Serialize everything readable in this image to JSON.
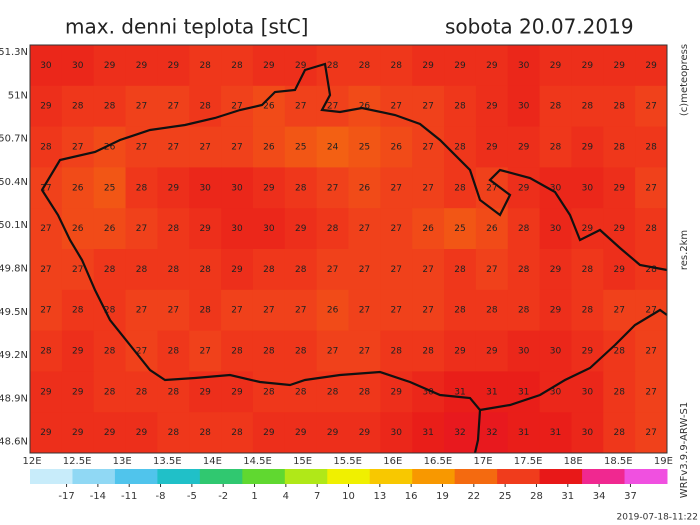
{
  "header": {
    "title": "max. denni teplota [stC]",
    "date": "sobota 20.07.2019"
  },
  "side": {
    "copyright": "(c)meteopress",
    "resolution": "res.2km",
    "model": "WRFv3.9.9-ARW-S1",
    "run": "2019-07-18-11:22"
  },
  "map": {
    "lat_labels": [
      "51.3N",
      "51N",
      "50.7N",
      "50.4N",
      "50.1N",
      "49.8N",
      "49.5N",
      "49.2N",
      "48.9N",
      "48.6N"
    ],
    "lon_labels": [
      "12E",
      "12.5E",
      "13E",
      "13.5E",
      "14E",
      "14.5E",
      "15E",
      "15.5E",
      "16E",
      "16.5E",
      "17E",
      "17.5E",
      "18E",
      "18.5E",
      "19E"
    ],
    "grid_values": [
      [
        30,
        30,
        29,
        29,
        29,
        28,
        28,
        29,
        29,
        28,
        28,
        28,
        29,
        29,
        29,
        30,
        29,
        29,
        29,
        29
      ],
      [
        29,
        28,
        28,
        27,
        27,
        28,
        27,
        26,
        27,
        27,
        26,
        27,
        27,
        28,
        29,
        30,
        28,
        28,
        28,
        27
      ],
      [
        28,
        27,
        26,
        27,
        27,
        27,
        27,
        26,
        25,
        24,
        25,
        26,
        27,
        28,
        29,
        29,
        28,
        29,
        28,
        28
      ],
      [
        27,
        26,
        25,
        28,
        29,
        30,
        30,
        29,
        28,
        27,
        26,
        27,
        27,
        28,
        27,
        29,
        30,
        30,
        29,
        27
      ],
      [
        27,
        26,
        26,
        27,
        28,
        29,
        30,
        30,
        29,
        28,
        27,
        27,
        26,
        25,
        26,
        28,
        30,
        29,
        29,
        28
      ],
      [
        27,
        27,
        28,
        28,
        28,
        28,
        29,
        28,
        28,
        27,
        27,
        27,
        27,
        28,
        27,
        28,
        29,
        28,
        29,
        28
      ],
      [
        27,
        28,
        28,
        27,
        27,
        28,
        27,
        27,
        27,
        26,
        27,
        27,
        27,
        28,
        28,
        28,
        29,
        28,
        27,
        27
      ],
      [
        28,
        29,
        28,
        27,
        28,
        27,
        28,
        28,
        28,
        27,
        27,
        28,
        28,
        29,
        29,
        30,
        30,
        29,
        28,
        27
      ],
      [
        29,
        29,
        28,
        28,
        28,
        29,
        29,
        28,
        28,
        28,
        28,
        29,
        30,
        31,
        31,
        31,
        30,
        30,
        28,
        27
      ],
      [
        29,
        29,
        29,
        29,
        28,
        28,
        28,
        29,
        29,
        29,
        29,
        30,
        31,
        32,
        32,
        31,
        31,
        30,
        28,
        27
      ]
    ]
  },
  "colorbar": {
    "lim": [
      -20.5,
      40.5
    ],
    "ticks": [
      -17,
      -14,
      -11,
      -8,
      -5,
      -2,
      1,
      4,
      7,
      10,
      13,
      16,
      19,
      22,
      25,
      28,
      31,
      34,
      37
    ],
    "colors": [
      "#c8ecfa",
      "#90d8f4",
      "#50c4ec",
      "#20c0c8",
      "#30c870",
      "#60d830",
      "#b0e818",
      "#f0f000",
      "#f8c800",
      "#f89800",
      "#f46a10",
      "#f03c1c",
      "#e81818",
      "#f02890",
      "#f050e0"
    ]
  }
}
